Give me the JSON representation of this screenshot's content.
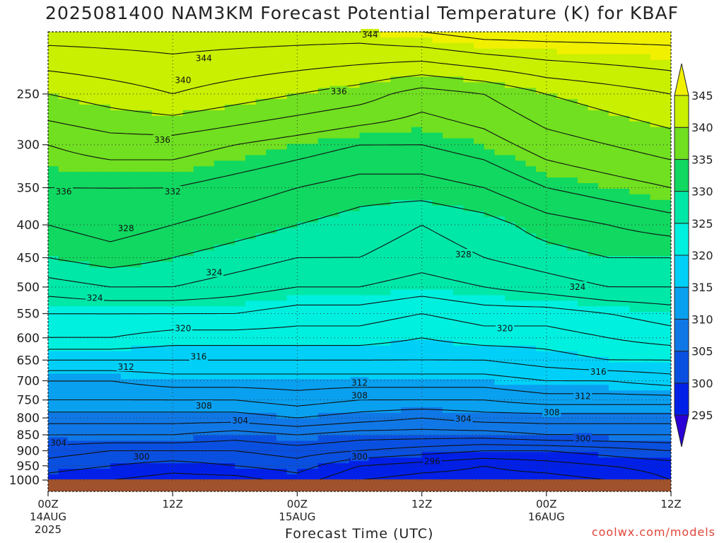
{
  "chart_data": {
    "type": "heatmap",
    "title": "2025081400 NAM3KM Forecast Potential Temperature (K) for KBAF",
    "xlabel": "Forecast Time (UTC)",
    "ylabel": "",
    "x_ticks": [
      {
        "label": "00Z",
        "sub": [
          "14AUG",
          "2025"
        ]
      },
      {
        "label": "12Z",
        "sub": []
      },
      {
        "label": "00Z",
        "sub": [
          "15AUG"
        ]
      },
      {
        "label": "12Z",
        "sub": []
      },
      {
        "label": "00Z",
        "sub": [
          "16AUG"
        ]
      },
      {
        "label": "12Z",
        "sub": []
      }
    ],
    "y_ticks": [
      250,
      300,
      350,
      400,
      450,
      500,
      550,
      600,
      650,
      700,
      750,
      800,
      850,
      900,
      950,
      1000
    ],
    "ylim_hpa": [
      200,
      1000
    ],
    "y_scale": "log-pressure",
    "xlim_hours": [
      0,
      60
    ],
    "grid": "dotted",
    "colorbar": {
      "levels": [
        295,
        300,
        305,
        310,
        315,
        320,
        325,
        330,
        335,
        340,
        345
      ],
      "colors": [
        "#2b00d6",
        "#0020e8",
        "#0a50e0",
        "#1078e6",
        "#0aa0f0",
        "#00d0f8",
        "#00f0e0",
        "#00e8a8",
        "#10d860",
        "#70e020",
        "#c8f000",
        "#f0f000"
      ],
      "extend": "both"
    },
    "levels_hpa": [
      200,
      250,
      300,
      350,
      400,
      450,
      500,
      550,
      600,
      650,
      700,
      750,
      800,
      850,
      900,
      950,
      1000
    ],
    "times_hours": [
      0,
      6,
      12,
      18,
      24,
      30,
      36,
      42,
      48,
      54,
      60
    ],
    "theta_values": [
      [
        345,
        345,
        345,
        345,
        345,
        345,
        346,
        347,
        347,
        347,
        347
      ],
      [
        340,
        341,
        342,
        341,
        340,
        339,
        337,
        338,
        340,
        341,
        342
      ],
      [
        336,
        337,
        337,
        336,
        335,
        334,
        334,
        335,
        337,
        338,
        339
      ],
      [
        334,
        334,
        334,
        333,
        332,
        331,
        331,
        332,
        334,
        335,
        336
      ],
      [
        332,
        333,
        332,
        331,
        330,
        329,
        328,
        329,
        331,
        332,
        333
      ],
      [
        330,
        331,
        330,
        329,
        328,
        328,
        327,
        328,
        329,
        330,
        330
      ],
      [
        327,
        328,
        328,
        327,
        326,
        326,
        325,
        326,
        327,
        328,
        328
      ],
      [
        324,
        324,
        324,
        324,
        323,
        323,
        322,
        323,
        323,
        324,
        325
      ],
      [
        322,
        322,
        321,
        321,
        321,
        321,
        320,
        321,
        321,
        322,
        323
      ],
      [
        318,
        318,
        318,
        318,
        318,
        318,
        318,
        318,
        319,
        320,
        320
      ],
      [
        314,
        314,
        315,
        315,
        315,
        315,
        315,
        315,
        316,
        316,
        317
      ],
      [
        312,
        312,
        312,
        312,
        313,
        312,
        312,
        312,
        313,
        313,
        313
      ],
      [
        309,
        309,
        309,
        309,
        310,
        309,
        308,
        309,
        309,
        309,
        309
      ],
      [
        306,
        306,
        306,
        305,
        306,
        305,
        305,
        305,
        306,
        306,
        306
      ],
      [
        303,
        302,
        302,
        302,
        303,
        302,
        301,
        300,
        300,
        301,
        302
      ],
      [
        301,
        300,
        299,
        300,
        301,
        298,
        297,
        296,
        297,
        298,
        299
      ],
      [
        299,
        298,
        297,
        297,
        299,
        296,
        295,
        295,
        295,
        296,
        298
      ]
    ],
    "contour_labels": [
      {
        "text": "344",
        "t": 31,
        "p": 202
      },
      {
        "text": "344",
        "t": 15,
        "p": 220
      },
      {
        "text": "340",
        "t": 13,
        "p": 238
      },
      {
        "text": "336",
        "t": 28,
        "p": 248
      },
      {
        "text": "336",
        "t": 1.5,
        "p": 355
      },
      {
        "text": "336",
        "t": 11,
        "p": 295
      },
      {
        "text": "332",
        "t": 12,
        "p": 355
      },
      {
        "text": "328",
        "t": 7.5,
        "p": 405
      },
      {
        "text": "328",
        "t": 40,
        "p": 445
      },
      {
        "text": "324",
        "t": 16,
        "p": 475
      },
      {
        "text": "324",
        "t": 51,
        "p": 500
      },
      {
        "text": "324",
        "t": 4.5,
        "p": 520
      },
      {
        "text": "320",
        "t": 13,
        "p": 580
      },
      {
        "text": "320",
        "t": 44,
        "p": 580
      },
      {
        "text": "316",
        "t": 14.5,
        "p": 642
      },
      {
        "text": "316",
        "t": 53,
        "p": 678
      },
      {
        "text": "312",
        "t": 7.5,
        "p": 666
      },
      {
        "text": "312",
        "t": 30,
        "p": 705
      },
      {
        "text": "312",
        "t": 51.5,
        "p": 740
      },
      {
        "text": "308",
        "t": 30,
        "p": 738
      },
      {
        "text": "308",
        "t": 15,
        "p": 766
      },
      {
        "text": "308",
        "t": 48.5,
        "p": 785
      },
      {
        "text": "304",
        "t": 18.5,
        "p": 808
      },
      {
        "text": "304",
        "t": 40,
        "p": 803
      },
      {
        "text": "304",
        "t": 1,
        "p": 875
      },
      {
        "text": "300",
        "t": 9,
        "p": 920
      },
      {
        "text": "300",
        "t": 30,
        "p": 920
      },
      {
        "text": "300",
        "t": 51.5,
        "p": 862
      },
      {
        "text": "296",
        "t": 37,
        "p": 935
      }
    ]
  },
  "credit": "coolwx.com/models"
}
